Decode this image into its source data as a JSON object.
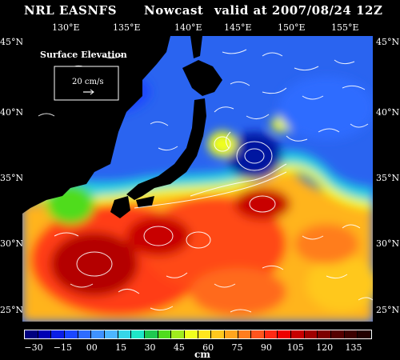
{
  "header": {
    "source": "NRL EASNFS",
    "mode": "Nowcast",
    "valid": "valid at 2007/08/24 12Z"
  },
  "axes": {
    "lon_labels": [
      "130°E",
      "135°E",
      "140°E",
      "145°E",
      "150°E",
      "155°E"
    ],
    "lat_labels": [
      "45°N",
      "40°N",
      "35°N",
      "30°N",
      "25°N"
    ]
  },
  "map": {
    "field_label": "Surface Elevation",
    "vector_scale": "20 cm/s"
  },
  "colorbar": {
    "tick_labels": [
      "−30",
      "−15",
      "00",
      "15",
      "30",
      "45",
      "60",
      "75",
      "90",
      "105",
      "120",
      "135"
    ],
    "unit": "cm",
    "colors": [
      "#000080",
      "#0000b4",
      "#0a1ee6",
      "#1a46ff",
      "#2e6cff",
      "#3f92ff",
      "#4cb6ff",
      "#36d6e8",
      "#1ee6c8",
      "#1ec850",
      "#50dc1e",
      "#a0ec1e",
      "#f0ff1e",
      "#ffe61e",
      "#ffc81e",
      "#ffa51e",
      "#ff7d1e",
      "#ff551e",
      "#ff2a14",
      "#ee0000",
      "#c80000",
      "#a00000",
      "#7d0000",
      "#550000",
      "#3c0000",
      "#230000"
    ]
  }
}
